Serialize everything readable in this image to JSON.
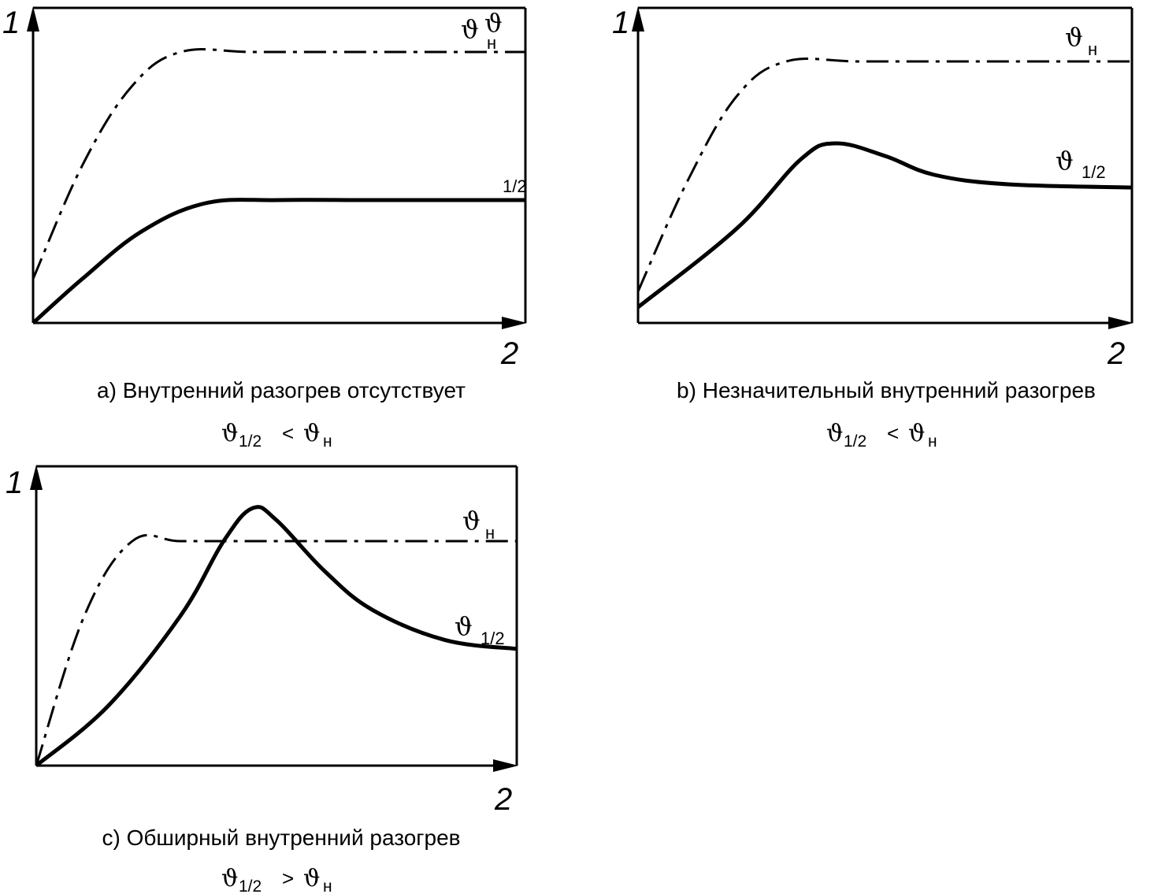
{
  "chart_data": [
    {
      "type": "line",
      "y_axis_label": "1",
      "x_axis_label": "2",
      "caption": "a) Внутренний разогрев отсутствует",
      "relation": {
        "left_symbol": "ϑ",
        "left_subscript": "1/2",
        "operator": "<",
        "right_symbol": "ϑ",
        "right_subscript": "н"
      },
      "xlim": [
        0,
        1
      ],
      "ylim": [
        0,
        1
      ],
      "series": [
        {
          "symbol": "ϑ",
          "subscript": "н",
          "style": "dash-dot",
          "x": [
            0,
            0.1,
            0.2,
            0.3,
            0.45,
            0.7,
            1.0
          ],
          "y": [
            0.14,
            0.5,
            0.75,
            0.86,
            0.86,
            0.86,
            0.86
          ]
        },
        {
          "symbol": "ϑ",
          "subscript": "1/2",
          "style": "solid",
          "x": [
            0,
            0.1,
            0.22,
            0.35,
            0.5,
            0.7,
            1.0
          ],
          "y": [
            0,
            0.14,
            0.29,
            0.38,
            0.39,
            0.39,
            0.39
          ]
        }
      ]
    },
    {
      "type": "line",
      "y_axis_label": "1",
      "x_axis_label": "2",
      "caption": "b) Незначительный внутренний разогрев",
      "relation": {
        "left_symbol": "ϑ",
        "left_subscript": "1/2",
        "operator": "<",
        "right_symbol": "ϑ",
        "right_subscript": "н"
      },
      "xlim": [
        0,
        1
      ],
      "ylim": [
        0,
        1
      ],
      "series": [
        {
          "symbol": "ϑ",
          "subscript": "н",
          "style": "dash-dot",
          "x": [
            0,
            0.1,
            0.2,
            0.3,
            0.45,
            0.7,
            1.0
          ],
          "y": [
            0.1,
            0.45,
            0.72,
            0.83,
            0.83,
            0.83,
            0.83
          ]
        },
        {
          "symbol": "ϑ",
          "subscript": "1/2",
          "style": "solid",
          "x": [
            0,
            0.2,
            0.33,
            0.4,
            0.5,
            0.6,
            0.75,
            1.0
          ],
          "y": [
            0.05,
            0.3,
            0.52,
            0.57,
            0.53,
            0.47,
            0.44,
            0.43
          ]
        }
      ]
    },
    {
      "type": "line",
      "y_axis_label": "1",
      "x_axis_label": "2",
      "caption": "c) Обширный внутренний разогрев",
      "relation": {
        "left_symbol": "ϑ",
        "left_subscript": "1/2",
        "operator": ">",
        "right_symbol": "ϑ",
        "right_subscript": "н"
      },
      "xlim": [
        0,
        1
      ],
      "ylim": [
        0,
        1
      ],
      "series": [
        {
          "symbol": "ϑ",
          "subscript": "н",
          "style": "dash-dot",
          "x": [
            0,
            0.1,
            0.2,
            0.3,
            0.45,
            0.7,
            1.0
          ],
          "y": [
            0,
            0.5,
            0.75,
            0.75,
            0.75,
            0.75,
            0.75
          ]
        },
        {
          "symbol": "ϑ",
          "subscript": "1/2",
          "style": "solid",
          "x": [
            0,
            0.15,
            0.3,
            0.39,
            0.45,
            0.5,
            0.6,
            0.7,
            0.85,
            1.0
          ],
          "y": [
            0,
            0.2,
            0.5,
            0.75,
            0.86,
            0.82,
            0.65,
            0.52,
            0.42,
            0.39
          ]
        }
      ]
    }
  ]
}
